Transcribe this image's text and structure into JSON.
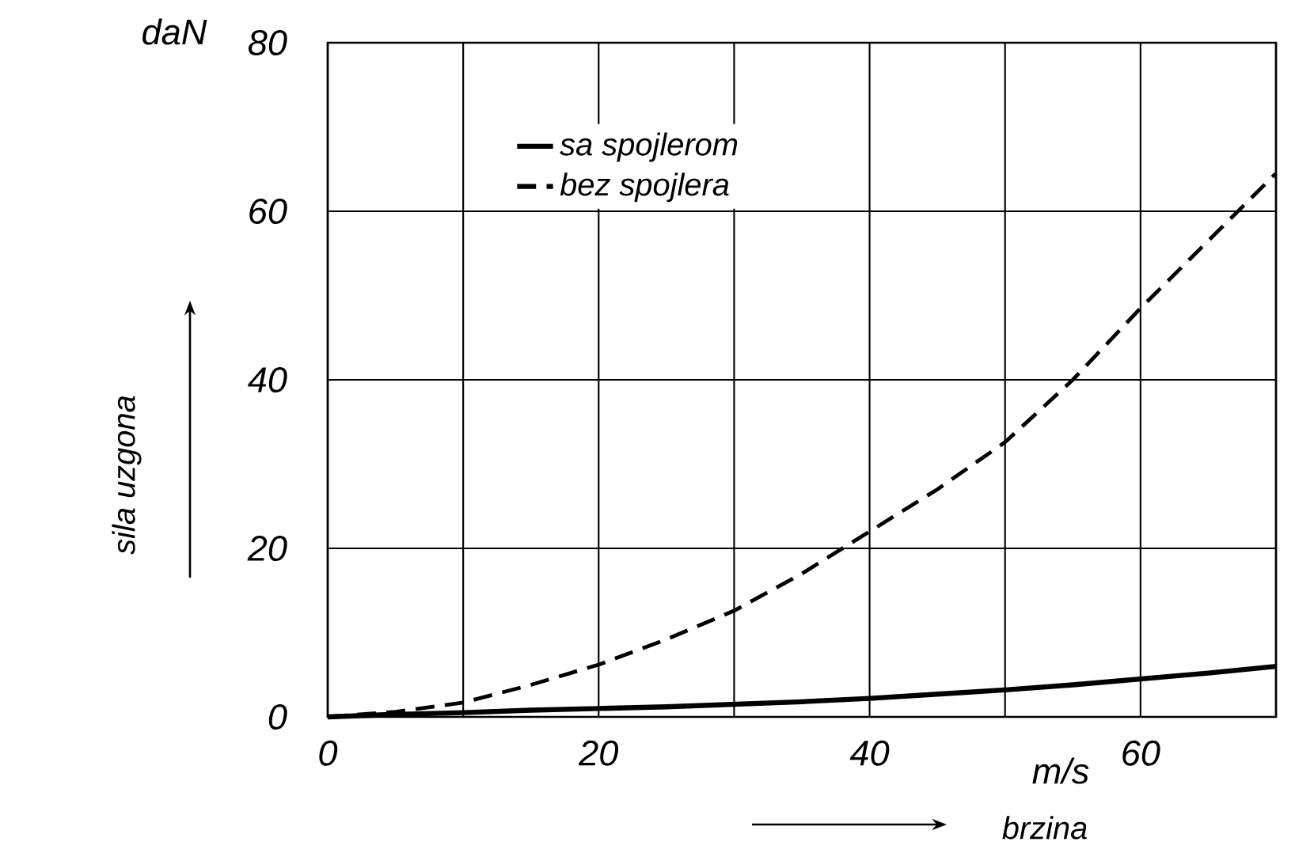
{
  "chart_data": {
    "type": "line",
    "xlabel": "brzina",
    "ylabel": "sila uzgona",
    "annotations": [
      "daN",
      "m/s"
    ],
    "x": [
      0,
      5,
      10,
      15,
      20,
      25,
      30,
      35,
      40,
      45,
      50,
      55,
      60,
      65,
      70
    ],
    "series": [
      {
        "name": "sa spojlerom",
        "color": "#000000",
        "line_style": "solid",
        "values": [
          0,
          0.3,
          0.5,
          0.8,
          1.0,
          1.2,
          1.5,
          1.8,
          2.2,
          2.7,
          3.2,
          3.8,
          4.5,
          5.2,
          6.0
        ]
      },
      {
        "name": "bez spojlera",
        "color": "#000000",
        "line_style": "dashed",
        "values": [
          0,
          0.6,
          1.7,
          3.8,
          6.2,
          9.2,
          12.6,
          17.0,
          22.0,
          27.0,
          32.6,
          40.0,
          48.5,
          56.5,
          64.5
        ]
      }
    ],
    "xlim": [
      0,
      70
    ],
    "ylim": [
      0,
      80
    ],
    "xticks": [
      0,
      {
        "value": 10,
        "label": null
      },
      20,
      {
        "value": 30,
        "label": null
      },
      40,
      {
        "value": 50,
        "label": null
      },
      60,
      {
        "value": 70,
        "label": null
      }
    ],
    "yticks": [
      0,
      20,
      40,
      60,
      80
    ],
    "grid": true,
    "legend": "top left",
    "marker": "none"
  }
}
